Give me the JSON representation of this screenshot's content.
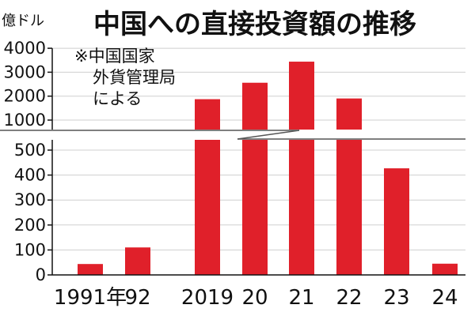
{
  "chart_data": {
    "type": "bar",
    "title": "中国への直接投資額の推移",
    "ylabel": "億ドル",
    "categories": [
      "1991年",
      "92",
      "2019",
      "20",
      "21",
      "22",
      "23",
      "24"
    ],
    "values": [
      43.7,
      110.1,
      1873,
      2560,
      3441,
      1903,
      427,
      45
    ],
    "bar_color": "#e0202a",
    "y_axis_scale": "broken",
    "y_ticks_lower": [
      0,
      100,
      200,
      300,
      400,
      500
    ],
    "y_ticks_upper": [
      1000,
      2000,
      3000,
      4000
    ],
    "ylim": [
      0,
      4000
    ],
    "note_lines": [
      "※中国国家",
      "外貨管理局",
      "による"
    ],
    "grid": true
  }
}
